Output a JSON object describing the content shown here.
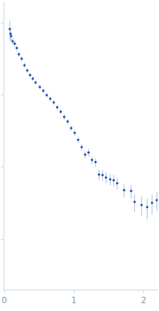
{
  "chart_data": {
    "type": "scatter",
    "marker": "circle",
    "color": "#2f5fae",
    "error_color": "#a9c0e0",
    "x": [
      0.08,
      0.09,
      0.1,
      0.12,
      0.15,
      0.18,
      0.21,
      0.25,
      0.29,
      0.33,
      0.37,
      0.41,
      0.45,
      0.51,
      0.56,
      0.61,
      0.66,
      0.71,
      0.76,
      0.81,
      0.86,
      0.91,
      0.96,
      1.01,
      1.06,
      1.11,
      1.16,
      1.21,
      1.26,
      1.31,
      1.36,
      1.41,
      1.46,
      1.52,
      1.57,
      1.62,
      1.72,
      1.82,
      1.87,
      1.97,
      2.05,
      2.12,
      2.19
    ],
    "values": [
      0.83,
      0.71,
      0.66,
      0.56,
      0.52,
      0.45,
      0.37,
      0.32,
      0.26,
      0.22,
      0.19,
      0.17,
      0.15,
      0.13,
      0.115,
      0.1,
      0.089,
      0.079,
      0.068,
      0.059,
      0.05,
      0.043,
      0.035,
      0.03,
      0.024,
      0.019,
      0.015,
      0.016,
      0.0126,
      0.0118,
      0.0079,
      0.0078,
      0.0072,
      0.0068,
      0.0066,
      0.006,
      0.0048,
      0.0047,
      0.0033,
      0.003,
      0.0028,
      0.0032,
      0.0035
    ],
    "errors": [
      0.25,
      0.15,
      0.1,
      0.06,
      0.05,
      0.04,
      0.03,
      0.025,
      0.02,
      0.017,
      0.014,
      0.012,
      0.011,
      0.01,
      0.009,
      0.008,
      0.007,
      0.006,
      0.005,
      0.0045,
      0.004,
      0.0035,
      0.003,
      0.0027,
      0.0023,
      0.002,
      0.0018,
      0.0019,
      0.0016,
      0.0016,
      0.0013,
      0.0013,
      0.0012,
      0.0012,
      0.0012,
      0.0011,
      0.001,
      0.001,
      0.0009,
      0.0009,
      0.0009,
      0.001,
      0.001
    ],
    "xlim": [
      0,
      2.2
    ],
    "ylim": [
      0.0002,
      2
    ],
    "xticks": [
      0,
      1,
      2
    ],
    "yticks": [
      0.001,
      0.01,
      0.1,
      1
    ],
    "log": "y",
    "grid": false,
    "tick_labels": "x"
  }
}
